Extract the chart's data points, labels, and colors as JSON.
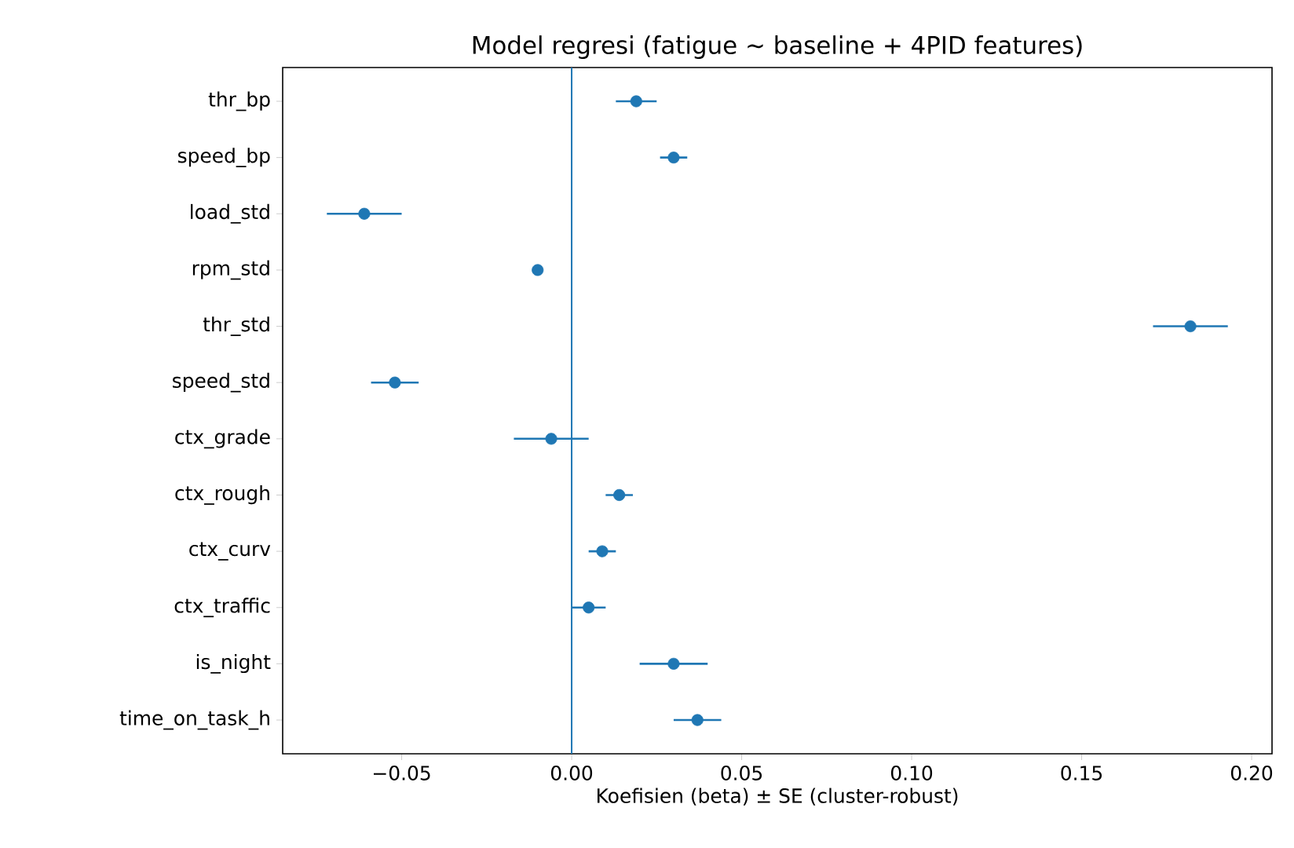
{
  "chart_data": {
    "type": "scatter",
    "title": "Model regresi (fatigue ~ baseline + 4PID features)",
    "xlabel": "Koefisien (beta) ± SE (cluster-robust)",
    "categories": [
      "thr_bp",
      "speed_bp",
      "load_std",
      "rpm_std",
      "thr_std",
      "speed_std",
      "ctx_grade",
      "ctx_rough",
      "ctx_curv",
      "ctx_traffic",
      "is_night",
      "time_on_task_h"
    ],
    "orientation": "horizontal",
    "series": [
      {
        "color": "#1f77b4",
        "values": [
          0.019,
          0.03,
          -0.061,
          -0.01,
          0.182,
          -0.052,
          -0.006,
          0.014,
          0.009,
          0.005,
          0.03,
          0.037
        ],
        "errors": [
          0.006,
          0.004,
          0.011,
          0.001,
          0.011,
          0.007,
          0.011,
          0.004,
          0.004,
          0.005,
          0.01,
          0.007
        ]
      }
    ],
    "xlim": [
      -0.085,
      0.206
    ],
    "xticks": [
      {
        "value": -0.05,
        "label": "−0.05"
      },
      {
        "value": 0,
        "label": "0.00"
      },
      {
        "value": 0.05,
        "label": "0.05"
      },
      {
        "value": 0.1,
        "label": "0.10"
      },
      {
        "value": 0.15,
        "label": "0.15"
      },
      {
        "value": 0.2,
        "label": "0.20"
      }
    ],
    "ref_lines": [
      {
        "axis": "x",
        "value": 0,
        "color": "#1f77b4"
      }
    ]
  }
}
